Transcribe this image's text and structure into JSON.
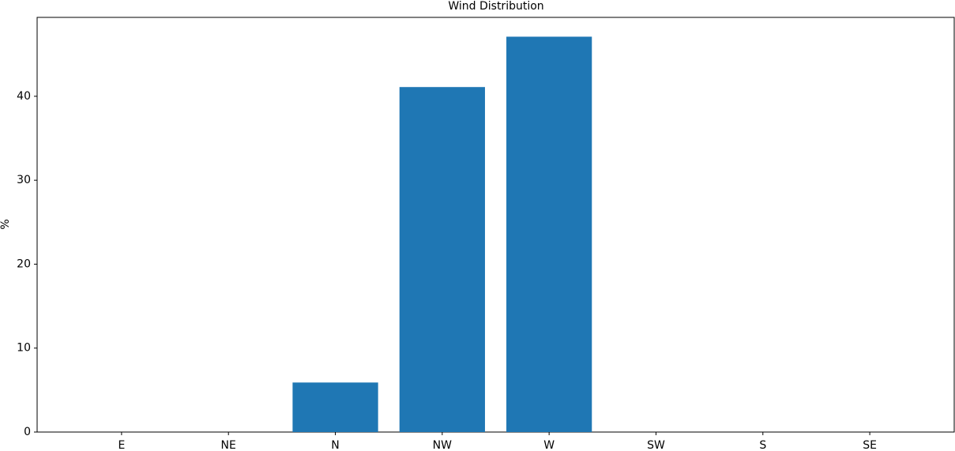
{
  "chart_data": {
    "type": "bar",
    "title": "Wind Distribution",
    "y_label": "%",
    "categories": [
      "E",
      "NE",
      "N",
      "NW",
      "W",
      "SW",
      "S",
      "SE"
    ],
    "values": [
      0,
      0,
      5.9,
      41.1,
      47.1,
      0,
      0,
      0
    ],
    "color": "#1f77b4",
    "ylim": [
      0,
      49.4
    ],
    "yticks": [
      0,
      10,
      20,
      30,
      40
    ],
    "grid": false
  }
}
